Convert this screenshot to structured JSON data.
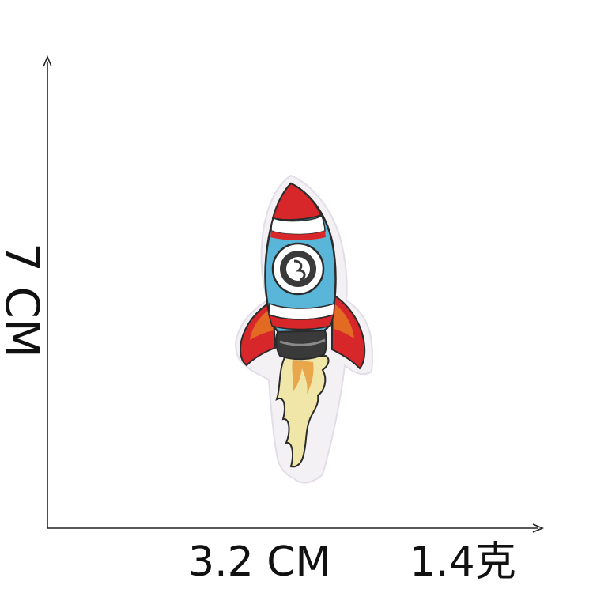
{
  "dimensions": {
    "height_label": "7 CM",
    "width_label": "3.2 CM",
    "weight_label": "1.4克"
  },
  "product": {
    "icon": "rocket-patch-icon",
    "colors": {
      "nose_red": "#d8272b",
      "body_blue": "#5ab6d8",
      "window_dark": "#3a3a3a",
      "flame_cream": "#efe6a8",
      "fin_orange": "#e26a22",
      "outline": "#2b2b2b",
      "backing": "#f3f1f4"
    }
  },
  "axes": {
    "color": "#222222"
  }
}
